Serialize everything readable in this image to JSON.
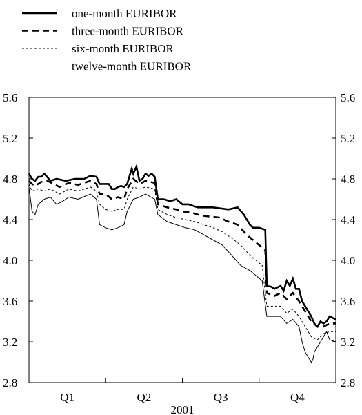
{
  "chart_data": {
    "type": "line",
    "xlabel": "2001",
    "x_ticks": [
      "Q1",
      "Q2",
      "Q3",
      "Q4"
    ],
    "y_ticks": [
      "2.8",
      "3.2",
      "3.6",
      "4.0",
      "4.4",
      "4.8",
      "5.2",
      "5.6"
    ],
    "ylim": [
      2.8,
      5.6
    ],
    "y_axis_both_sides": true,
    "grid": false,
    "legend_position": "top-left",
    "series": [
      {
        "name": "one-month EURIBOR",
        "style": "thick-solid",
        "points": [
          [
            0,
            4.85
          ],
          [
            0.01,
            4.8
          ],
          [
            0.02,
            4.78
          ],
          [
            0.03,
            4.82
          ],
          [
            0.04,
            4.82
          ],
          [
            0.05,
            4.85
          ],
          [
            0.07,
            4.78
          ],
          [
            0.09,
            4.8
          ],
          [
            0.12,
            4.78
          ],
          [
            0.15,
            4.8
          ],
          [
            0.18,
            4.8
          ],
          [
            0.2,
            4.83
          ],
          [
            0.22,
            4.82
          ],
          [
            0.23,
            4.75
          ],
          [
            0.24,
            4.75
          ],
          [
            0.26,
            4.75
          ],
          [
            0.27,
            4.7
          ],
          [
            0.28,
            4.7
          ],
          [
            0.29,
            4.72
          ],
          [
            0.3,
            4.73
          ],
          [
            0.31,
            4.72
          ],
          [
            0.32,
            4.75
          ],
          [
            0.33,
            4.85
          ],
          [
            0.335,
            4.9
          ],
          [
            0.34,
            4.85
          ],
          [
            0.35,
            4.92
          ],
          [
            0.36,
            4.78
          ],
          [
            0.37,
            4.8
          ],
          [
            0.38,
            4.85
          ],
          [
            0.39,
            4.83
          ],
          [
            0.4,
            4.85
          ],
          [
            0.41,
            4.82
          ],
          [
            0.42,
            4.6
          ],
          [
            0.44,
            4.6
          ],
          [
            0.46,
            4.58
          ],
          [
            0.48,
            4.6
          ],
          [
            0.5,
            4.55
          ],
          [
            0.52,
            4.55
          ],
          [
            0.55,
            4.52
          ],
          [
            0.6,
            4.52
          ],
          [
            0.65,
            4.5
          ],
          [
            0.68,
            4.52
          ],
          [
            0.7,
            4.45
          ],
          [
            0.72,
            4.35
          ],
          [
            0.73,
            4.32
          ],
          [
            0.75,
            4.32
          ],
          [
            0.77,
            4.3
          ],
          [
            0.775,
            3.75
          ],
          [
            0.79,
            3.74
          ],
          [
            0.8,
            3.72
          ],
          [
            0.82,
            3.75
          ],
          [
            0.83,
            3.7
          ],
          [
            0.84,
            3.8
          ],
          [
            0.85,
            3.75
          ],
          [
            0.86,
            3.82
          ],
          [
            0.87,
            3.72
          ],
          [
            0.88,
            3.72
          ],
          [
            0.89,
            3.6
          ],
          [
            0.9,
            3.55
          ],
          [
            0.91,
            3.5
          ],
          [
            0.92,
            3.45
          ],
          [
            0.93,
            3.38
          ],
          [
            0.94,
            3.35
          ],
          [
            0.95,
            3.4
          ],
          [
            0.96,
            3.38
          ],
          [
            0.97,
            3.4
          ],
          [
            0.98,
            3.45
          ],
          [
            1,
            3.42
          ]
        ]
      },
      {
        "name": "three-month EURIBOR",
        "style": "dashed",
        "points": [
          [
            0,
            4.78
          ],
          [
            0.01,
            4.75
          ],
          [
            0.02,
            4.73
          ],
          [
            0.04,
            4.77
          ],
          [
            0.06,
            4.78
          ],
          [
            0.08,
            4.75
          ],
          [
            0.1,
            4.72
          ],
          [
            0.13,
            4.76
          ],
          [
            0.16,
            4.74
          ],
          [
            0.2,
            4.78
          ],
          [
            0.22,
            4.75
          ],
          [
            0.23,
            4.65
          ],
          [
            0.25,
            4.65
          ],
          [
            0.27,
            4.6
          ],
          [
            0.29,
            4.62
          ],
          [
            0.31,
            4.6
          ],
          [
            0.32,
            4.7
          ],
          [
            0.34,
            4.8
          ],
          [
            0.36,
            4.75
          ],
          [
            0.38,
            4.78
          ],
          [
            0.41,
            4.76
          ],
          [
            0.42,
            4.55
          ],
          [
            0.45,
            4.52
          ],
          [
            0.48,
            4.5
          ],
          [
            0.5,
            4.48
          ],
          [
            0.53,
            4.47
          ],
          [
            0.56,
            4.44
          ],
          [
            0.59,
            4.43
          ],
          [
            0.62,
            4.42
          ],
          [
            0.65,
            4.38
          ],
          [
            0.68,
            4.35
          ],
          [
            0.71,
            4.25
          ],
          [
            0.73,
            4.2
          ],
          [
            0.75,
            4.15
          ],
          [
            0.77,
            4.1
          ],
          [
            0.775,
            3.68
          ],
          [
            0.8,
            3.65
          ],
          [
            0.82,
            3.68
          ],
          [
            0.84,
            3.62
          ],
          [
            0.86,
            3.68
          ],
          [
            0.88,
            3.6
          ],
          [
            0.9,
            3.5
          ],
          [
            0.92,
            3.4
          ],
          [
            0.94,
            3.35
          ],
          [
            0.96,
            3.35
          ],
          [
            0.98,
            3.38
          ],
          [
            1,
            3.38
          ]
        ]
      },
      {
        "name": "six-month EURIBOR",
        "style": "dotted",
        "points": [
          [
            0,
            4.75
          ],
          [
            0.01,
            4.68
          ],
          [
            0.03,
            4.7
          ],
          [
            0.05,
            4.68
          ],
          [
            0.07,
            4.7
          ],
          [
            0.1,
            4.65
          ],
          [
            0.13,
            4.7
          ],
          [
            0.16,
            4.68
          ],
          [
            0.2,
            4.72
          ],
          [
            0.22,
            4.68
          ],
          [
            0.23,
            4.55
          ],
          [
            0.25,
            4.5
          ],
          [
            0.27,
            4.48
          ],
          [
            0.29,
            4.5
          ],
          [
            0.31,
            4.5
          ],
          [
            0.32,
            4.6
          ],
          [
            0.34,
            4.72
          ],
          [
            0.36,
            4.7
          ],
          [
            0.38,
            4.72
          ],
          [
            0.41,
            4.7
          ],
          [
            0.42,
            4.5
          ],
          [
            0.45,
            4.45
          ],
          [
            0.48,
            4.42
          ],
          [
            0.51,
            4.4
          ],
          [
            0.54,
            4.38
          ],
          [
            0.57,
            4.35
          ],
          [
            0.6,
            4.32
          ],
          [
            0.63,
            4.28
          ],
          [
            0.66,
            4.22
          ],
          [
            0.69,
            4.15
          ],
          [
            0.72,
            4.05
          ],
          [
            0.74,
            4
          ],
          [
            0.76,
            3.95
          ],
          [
            0.775,
            3.55
          ],
          [
            0.8,
            3.55
          ],
          [
            0.82,
            3.55
          ],
          [
            0.84,
            3.48
          ],
          [
            0.86,
            3.52
          ],
          [
            0.88,
            3.45
          ],
          [
            0.9,
            3.35
          ],
          [
            0.92,
            3.25
          ],
          [
            0.94,
            3.22
          ],
          [
            0.96,
            3.28
          ],
          [
            0.98,
            3.3
          ],
          [
            1,
            3.3
          ]
        ]
      },
      {
        "name": "twelve-month EURIBOR",
        "style": "thin-solid",
        "points": [
          [
            0,
            4.72
          ],
          [
            0.01,
            4.48
          ],
          [
            0.02,
            4.45
          ],
          [
            0.03,
            4.55
          ],
          [
            0.05,
            4.6
          ],
          [
            0.07,
            4.62
          ],
          [
            0.09,
            4.55
          ],
          [
            0.11,
            4.58
          ],
          [
            0.13,
            4.62
          ],
          [
            0.16,
            4.6
          ],
          [
            0.2,
            4.65
          ],
          [
            0.22,
            4.6
          ],
          [
            0.23,
            4.35
          ],
          [
            0.25,
            4.32
          ],
          [
            0.27,
            4.3
          ],
          [
            0.29,
            4.32
          ],
          [
            0.31,
            4.35
          ],
          [
            0.32,
            4.48
          ],
          [
            0.34,
            4.6
          ],
          [
            0.36,
            4.62
          ],
          [
            0.38,
            4.65
          ],
          [
            0.41,
            4.6
          ],
          [
            0.42,
            4.45
          ],
          [
            0.45,
            4.38
          ],
          [
            0.48,
            4.35
          ],
          [
            0.51,
            4.32
          ],
          [
            0.54,
            4.3
          ],
          [
            0.57,
            4.25
          ],
          [
            0.6,
            4.2
          ],
          [
            0.63,
            4.15
          ],
          [
            0.66,
            4.05
          ],
          [
            0.69,
            3.95
          ],
          [
            0.72,
            3.9
          ],
          [
            0.74,
            3.85
          ],
          [
            0.76,
            3.8
          ],
          [
            0.775,
            3.45
          ],
          [
            0.8,
            3.45
          ],
          [
            0.82,
            3.45
          ],
          [
            0.84,
            3.38
          ],
          [
            0.86,
            3.42
          ],
          [
            0.88,
            3.35
          ],
          [
            0.89,
            3.2
          ],
          [
            0.9,
            3.1
          ],
          [
            0.91,
            3.05
          ],
          [
            0.92,
            3.0
          ],
          [
            0.925,
            3.02
          ],
          [
            0.93,
            3.1
          ],
          [
            0.95,
            3.2
          ],
          [
            0.97,
            3.3
          ],
          [
            0.98,
            3.22
          ],
          [
            1,
            3.2
          ]
        ]
      }
    ]
  }
}
